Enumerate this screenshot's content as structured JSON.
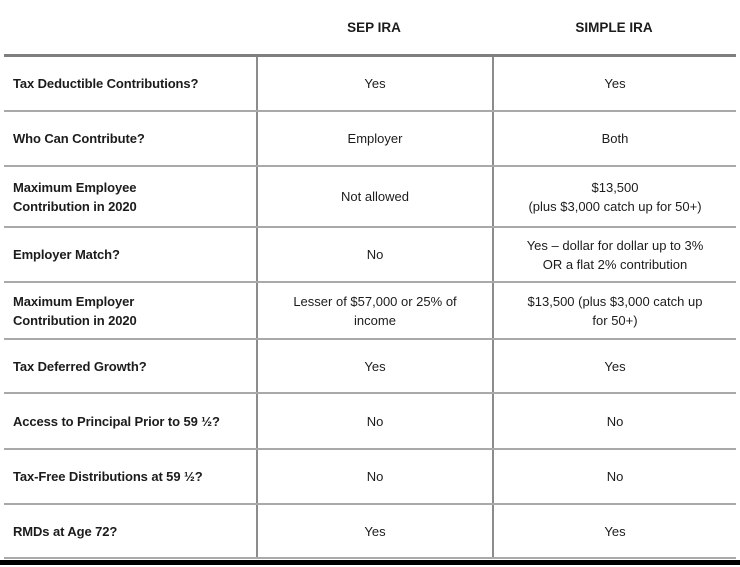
{
  "colors": {
    "text": "#1c1c1c",
    "top_border": "#7f7f7f",
    "row_line": "#a9a9a9",
    "column_line": "#8c8c8c",
    "bottom_rule": "#000000"
  },
  "chart_data": {
    "type": "table",
    "columns": [
      "",
      "SEP IRA",
      "SIMPLE IRA"
    ],
    "rows": [
      {
        "label": "Tax Deductible Contributions?",
        "sep_ira": "Yes",
        "simple_ira": "Yes"
      },
      {
        "label": "Who Can Contribute?",
        "sep_ira": "Employer",
        "simple_ira": "Both"
      },
      {
        "label": "Maximum Employee\nContribution in 2020",
        "sep_ira": "Not allowed",
        "simple_ira": "$13,500\n(plus $3,000 catch up for 50+)"
      },
      {
        "label": "Employer Match?",
        "sep_ira": "No",
        "simple_ira": "Yes – dollar for dollar up to 3%\nOR a flat 2% contribution"
      },
      {
        "label": "Maximum Employer\nContribution in 2020",
        "sep_ira": "Lesser of $57,000 or 25% of\nincome",
        "simple_ira": "$13,500 (plus $3,000 catch up\nfor 50+)"
      },
      {
        "label": "Tax Deferred Growth?",
        "sep_ira": "Yes",
        "simple_ira": "Yes"
      },
      {
        "label": "Access to Principal Prior to 59 ½?",
        "sep_ira": "No",
        "simple_ira": "No"
      },
      {
        "label": "Tax-Free Distributions at 59 ½?",
        "sep_ira": "No",
        "simple_ira": "No"
      },
      {
        "label": "RMDs at Age 72?",
        "sep_ira": "Yes",
        "simple_ira": "Yes"
      }
    ]
  }
}
